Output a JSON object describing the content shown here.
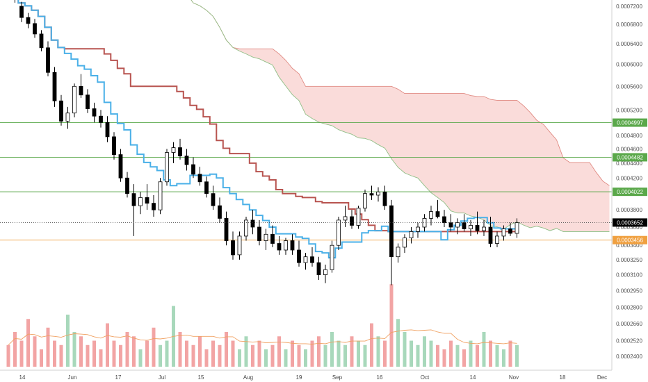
{
  "chart_data": {
    "type": "candlestick",
    "y_axis": {
      "scale": "log",
      "range": [
        0.00023,
        0.00074
      ],
      "ticks": [
        "0.0007200",
        "0.0006800",
        "0.0006400",
        "0.0006000",
        "0.0005600",
        "0.0005200",
        "0.0004800",
        "0.0004600",
        "0.0004400",
        "0.0004200",
        "0.0003800",
        "0.0003600",
        "0.0003400",
        "0.0003250",
        "0.0003100",
        "0.0002950",
        "0.0002800",
        "0.0002660",
        "0.0002520",
        "0.0002400"
      ]
    },
    "x_axis": {
      "ticks": [
        "14",
        "Jun",
        "17",
        "Jul",
        "15",
        "Aug",
        "19",
        "Sep",
        "16",
        "Oct",
        "14",
        "Nov",
        "18",
        "Dec"
      ]
    },
    "horizontal_lines": [
      {
        "label": "0.0004997",
        "value": 0.0004997,
        "color": "#5aa84a"
      },
      {
        "label": "0.0004482",
        "value": 0.0004482,
        "color": "#5aa84a"
      },
      {
        "label": "0.0004022",
        "value": 0.0004022,
        "color": "#5aa84a"
      },
      {
        "label": "0.0003456",
        "value": 0.0003456,
        "color": "#f0a040"
      }
    ],
    "last_price": {
      "label": "0.0003652",
      "value": 0.0003652,
      "color": "#000000"
    },
    "candles": [
      [
        0.00076,
        0.00077,
        0.000735,
        0.000745
      ],
      [
        0.000745,
        0.000752,
        0.000728,
        0.000735
      ],
      [
        0.00072,
        0.00073,
        0.000685,
        0.000695
      ],
      [
        0.000695,
        0.000705,
        0.000672,
        0.000682
      ],
      [
        0.000682,
        0.000692,
        0.000652,
        0.00066
      ],
      [
        0.00066,
        0.000668,
        0.000625,
        0.000632
      ],
      [
        0.000632,
        0.000645,
        0.000578,
        0.000585
      ],
      [
        0.000585,
        0.000595,
        0.000525,
        0.000535
      ],
      [
        0.000535,
        0.000545,
        0.000495,
        0.000502
      ],
      [
        0.000502,
        0.000525,
        0.00049,
        0.000515
      ],
      [
        0.000515,
        0.000565,
        0.000508,
        0.00056
      ],
      [
        0.00056,
        0.000582,
        0.00054,
        0.000545
      ],
      [
        0.000545,
        0.000555,
        0.000515,
        0.000522
      ],
      [
        0.000522,
        0.000532,
        0.0005,
        0.00051
      ],
      [
        0.00051,
        0.00052,
        0.000492,
        0.0005
      ],
      [
        0.0005,
        0.00051,
        0.00047,
        0.000478
      ],
      [
        0.000478,
        0.000485,
        0.000445,
        0.000452
      ],
      [
        0.000452,
        0.00046,
        0.000415,
        0.00042
      ],
      [
        0.00042,
        0.000428,
        0.000395,
        0.0004
      ],
      [
        0.0004,
        0.000412,
        0.00035,
        0.000385
      ],
      [
        0.000385,
        0.000402,
        0.000375,
        0.000395
      ],
      [
        0.000395,
        0.000412,
        0.00038,
        0.000388
      ],
      [
        0.000388,
        0.000398,
        0.000372,
        0.00038
      ],
      [
        0.00038,
        0.00042,
        0.000375,
        0.000415
      ],
      [
        0.000415,
        0.00046,
        0.00041,
        0.000455
      ],
      [
        0.000455,
        0.00047,
        0.00044,
        0.000462
      ],
      [
        0.000462,
        0.000475,
        0.000445,
        0.00045
      ],
      [
        0.00045,
        0.00046,
        0.00043,
        0.000438
      ],
      [
        0.000438,
        0.000448,
        0.00042,
        0.000425
      ],
      [
        0.000425,
        0.000435,
        0.00041,
        0.000415
      ],
      [
        0.000415,
        0.000422,
        0.000395,
        0.0004
      ],
      [
        0.0004,
        0.00041,
        0.00038,
        0.000385
      ],
      [
        0.000385,
        0.000395,
        0.000365,
        0.00037
      ],
      [
        0.00037,
        0.000378,
        0.00034,
        0.000345
      ],
      [
        0.000345,
        0.000355,
        0.000325,
        0.00033
      ],
      [
        0.00033,
        0.000355,
        0.000325,
        0.00035
      ],
      [
        0.00035,
        0.000372,
        0.000345,
        0.000368
      ],
      [
        0.000368,
        0.00038,
        0.000352,
        0.00036
      ],
      [
        0.00036,
        0.000368,
        0.00034,
        0.000345
      ],
      [
        0.000345,
        0.000358,
        0.000335,
        0.000352
      ],
      [
        0.000352,
        0.000362,
        0.000338,
        0.000342
      ],
      [
        0.000342,
        0.00035,
        0.00033,
        0.000335
      ],
      [
        0.000335,
        0.000348,
        0.00033,
        0.000345
      ],
      [
        0.000345,
        0.000352,
        0.00033,
        0.000335
      ],
      [
        0.000335,
        0.000345,
        0.000318,
        0.000322
      ],
      [
        0.000322,
        0.000332,
        0.000315,
        0.000328
      ],
      [
        0.000328,
        0.000338,
        0.000318,
        0.000322
      ],
      [
        0.000322,
        0.000328,
        0.000305,
        0.00031
      ],
      [
        0.00031,
        0.00032,
        0.000302,
        0.000315
      ],
      [
        0.000315,
        0.000345,
        0.000312,
        0.00034
      ],
      [
        0.00034,
        0.000372,
        0.000335,
        0.000368
      ],
      [
        0.000368,
        0.000385,
        0.00036,
        0.000372
      ],
      [
        0.000372,
        0.00038,
        0.000358,
        0.000362
      ],
      [
        0.000362,
        0.000385,
        0.000358,
        0.000382
      ],
      [
        0.000382,
        0.000405,
        0.000378,
        0.0004
      ],
      [
        0.0004,
        0.00041,
        0.000392,
        0.000398
      ],
      [
        0.000398,
        0.000408,
        0.00039,
        0.000402
      ],
      [
        0.000402,
        0.00041,
        0.00038,
        0.000385
      ],
      [
        0.000385,
        0.000392,
        0.0003,
        0.000328
      ],
      [
        0.000328,
        0.000342,
        0.000322,
        0.000338
      ],
      [
        0.000338,
        0.000352,
        0.000332,
        0.000348
      ],
      [
        0.000348,
        0.00036,
        0.000342,
        0.000355
      ],
      [
        0.000355,
        0.000365,
        0.000348,
        0.00036
      ],
      [
        0.00036,
        0.000375,
        0.000355,
        0.00037
      ],
      [
        0.00037,
        0.000385,
        0.000362,
        0.000378
      ],
      [
        0.000378,
        0.000392,
        0.00037,
        0.000372
      ],
      [
        0.000372,
        0.00038,
        0.00036,
        0.000365
      ],
      [
        0.000365,
        0.000375,
        0.000355,
        0.00036
      ],
      [
        0.00036,
        0.00037,
        0.000352,
        0.000365
      ],
      [
        0.000365,
        0.000375,
        0.000355,
        0.000358
      ],
      [
        0.000358,
        0.000368,
        0.00035,
        0.000362
      ],
      [
        0.000362,
        0.000378,
        0.000352,
        0.000356
      ],
      [
        0.000356,
        0.000368,
        0.00035,
        0.00036
      ],
      [
        0.00036,
        0.000372,
        0.000338,
        0.000342
      ],
      [
        0.000342,
        0.000355,
        0.000338,
        0.00035
      ],
      [
        0.00035,
        0.000362,
        0.000345,
        0.000358
      ],
      [
        0.000358,
        0.000365,
        0.00035,
        0.000353
      ],
      [
        0.000353,
        0.00037,
        0.000348,
        0.000365
      ]
    ],
    "volume": [
      0.25,
      0.4,
      0.3,
      0.55,
      0.35,
      0.2,
      0.45,
      0.3,
      0.25,
      0.6,
      0.4,
      0.35,
      0.25,
      0.3,
      0.2,
      0.5,
      0.3,
      0.25,
      0.4,
      0.35,
      0.2,
      0.3,
      0.45,
      0.25,
      0.3,
      0.7,
      0.4,
      0.3,
      0.25,
      0.35,
      0.2,
      0.3,
      0.25,
      0.4,
      0.3,
      0.2,
      0.35,
      0.25,
      0.3,
      0.2,
      0.25,
      0.35,
      0.2,
      0.3,
      0.25,
      0.2,
      0.3,
      0.35,
      0.25,
      0.4,
      0.3,
      0.25,
      0.35,
      0.3,
      0.25,
      0.5,
      0.35,
      0.3,
      0.95,
      0.55,
      0.4,
      0.3,
      0.25,
      0.35,
      0.3,
      0.25,
      0.2,
      0.3,
      0.25,
      0.2,
      0.3,
      0.25,
      0.4,
      0.3,
      0.25,
      0.2,
      0.3,
      0.25
    ]
  }
}
